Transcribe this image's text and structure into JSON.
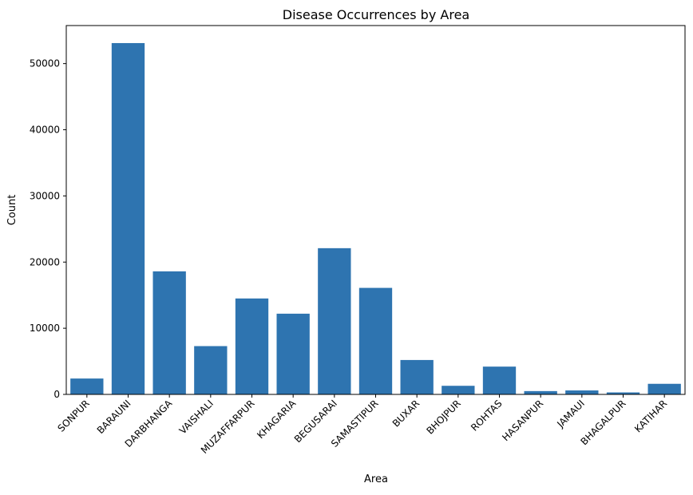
{
  "chart_data": {
    "type": "bar",
    "title": "Disease Occurrences by Area",
    "xlabel": "Area",
    "ylabel": "Count",
    "categories": [
      "SONPUR",
      "BARAUNI",
      "DARBHANGA",
      "VAISHALI",
      "MUZAFFARPUR",
      "KHAGARIA",
      "BEGUSARAI",
      "SAMASTIPUR",
      "BUXAR",
      "BHOJPUR",
      "ROHTAS",
      "HASANPUR",
      "JAMAUI",
      "BHAGALPUR",
      "KATIHAR"
    ],
    "values": [
      2400,
      53100,
      18600,
      7300,
      14500,
      12200,
      22100,
      16100,
      5200,
      1300,
      4200,
      500,
      600,
      300,
      1600
    ],
    "ylim": [
      0,
      55750
    ],
    "yticks": [
      0,
      10000,
      20000,
      30000,
      40000,
      50000
    ],
    "xtick_rotation_deg": 45,
    "grid": false,
    "legend": "none",
    "bar_color": "#2e74b0"
  }
}
